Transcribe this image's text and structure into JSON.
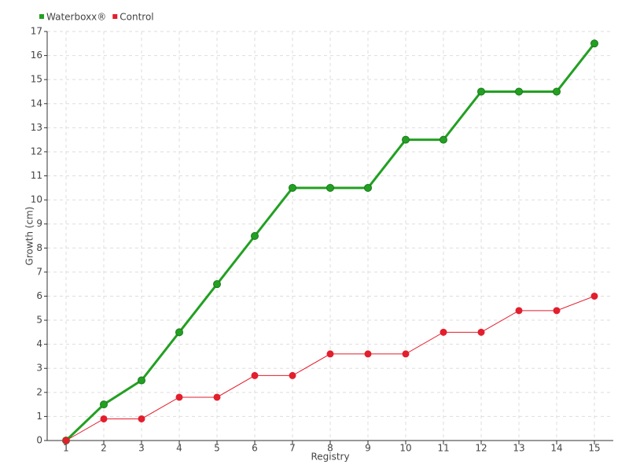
{
  "chart_data": {
    "type": "line",
    "x_label": "Registry",
    "y_label": "Growth (cm)",
    "categories": [
      "1",
      "2",
      "3",
      "4",
      "5",
      "6",
      "7",
      "8",
      "9",
      "10",
      "11",
      "12",
      "13",
      "14",
      "15"
    ],
    "series": [
      {
        "name": "Waterboxx®",
        "color": "#22a022",
        "values": [
          0,
          1.5,
          2.5,
          4.5,
          6.5,
          8.5,
          10.5,
          10.5,
          10.5,
          12.5,
          12.5,
          14.5,
          14.5,
          14.5,
          16.5
        ]
      },
      {
        "name": "Control",
        "color": "#e31e2d",
        "values": [
          0,
          0.9,
          0.9,
          1.8,
          1.8,
          2.7,
          2.7,
          3.6,
          3.6,
          3.6,
          4.5,
          4.5,
          5.4,
          5.4,
          6.0
        ]
      }
    ],
    "ylim": [
      0,
      17
    ],
    "yticks": [
      0,
      1,
      2,
      3,
      4,
      5,
      6,
      7,
      8,
      9,
      10,
      11,
      12,
      13,
      14,
      15,
      16,
      17
    ],
    "grid": true,
    "legend": "top-left"
  }
}
